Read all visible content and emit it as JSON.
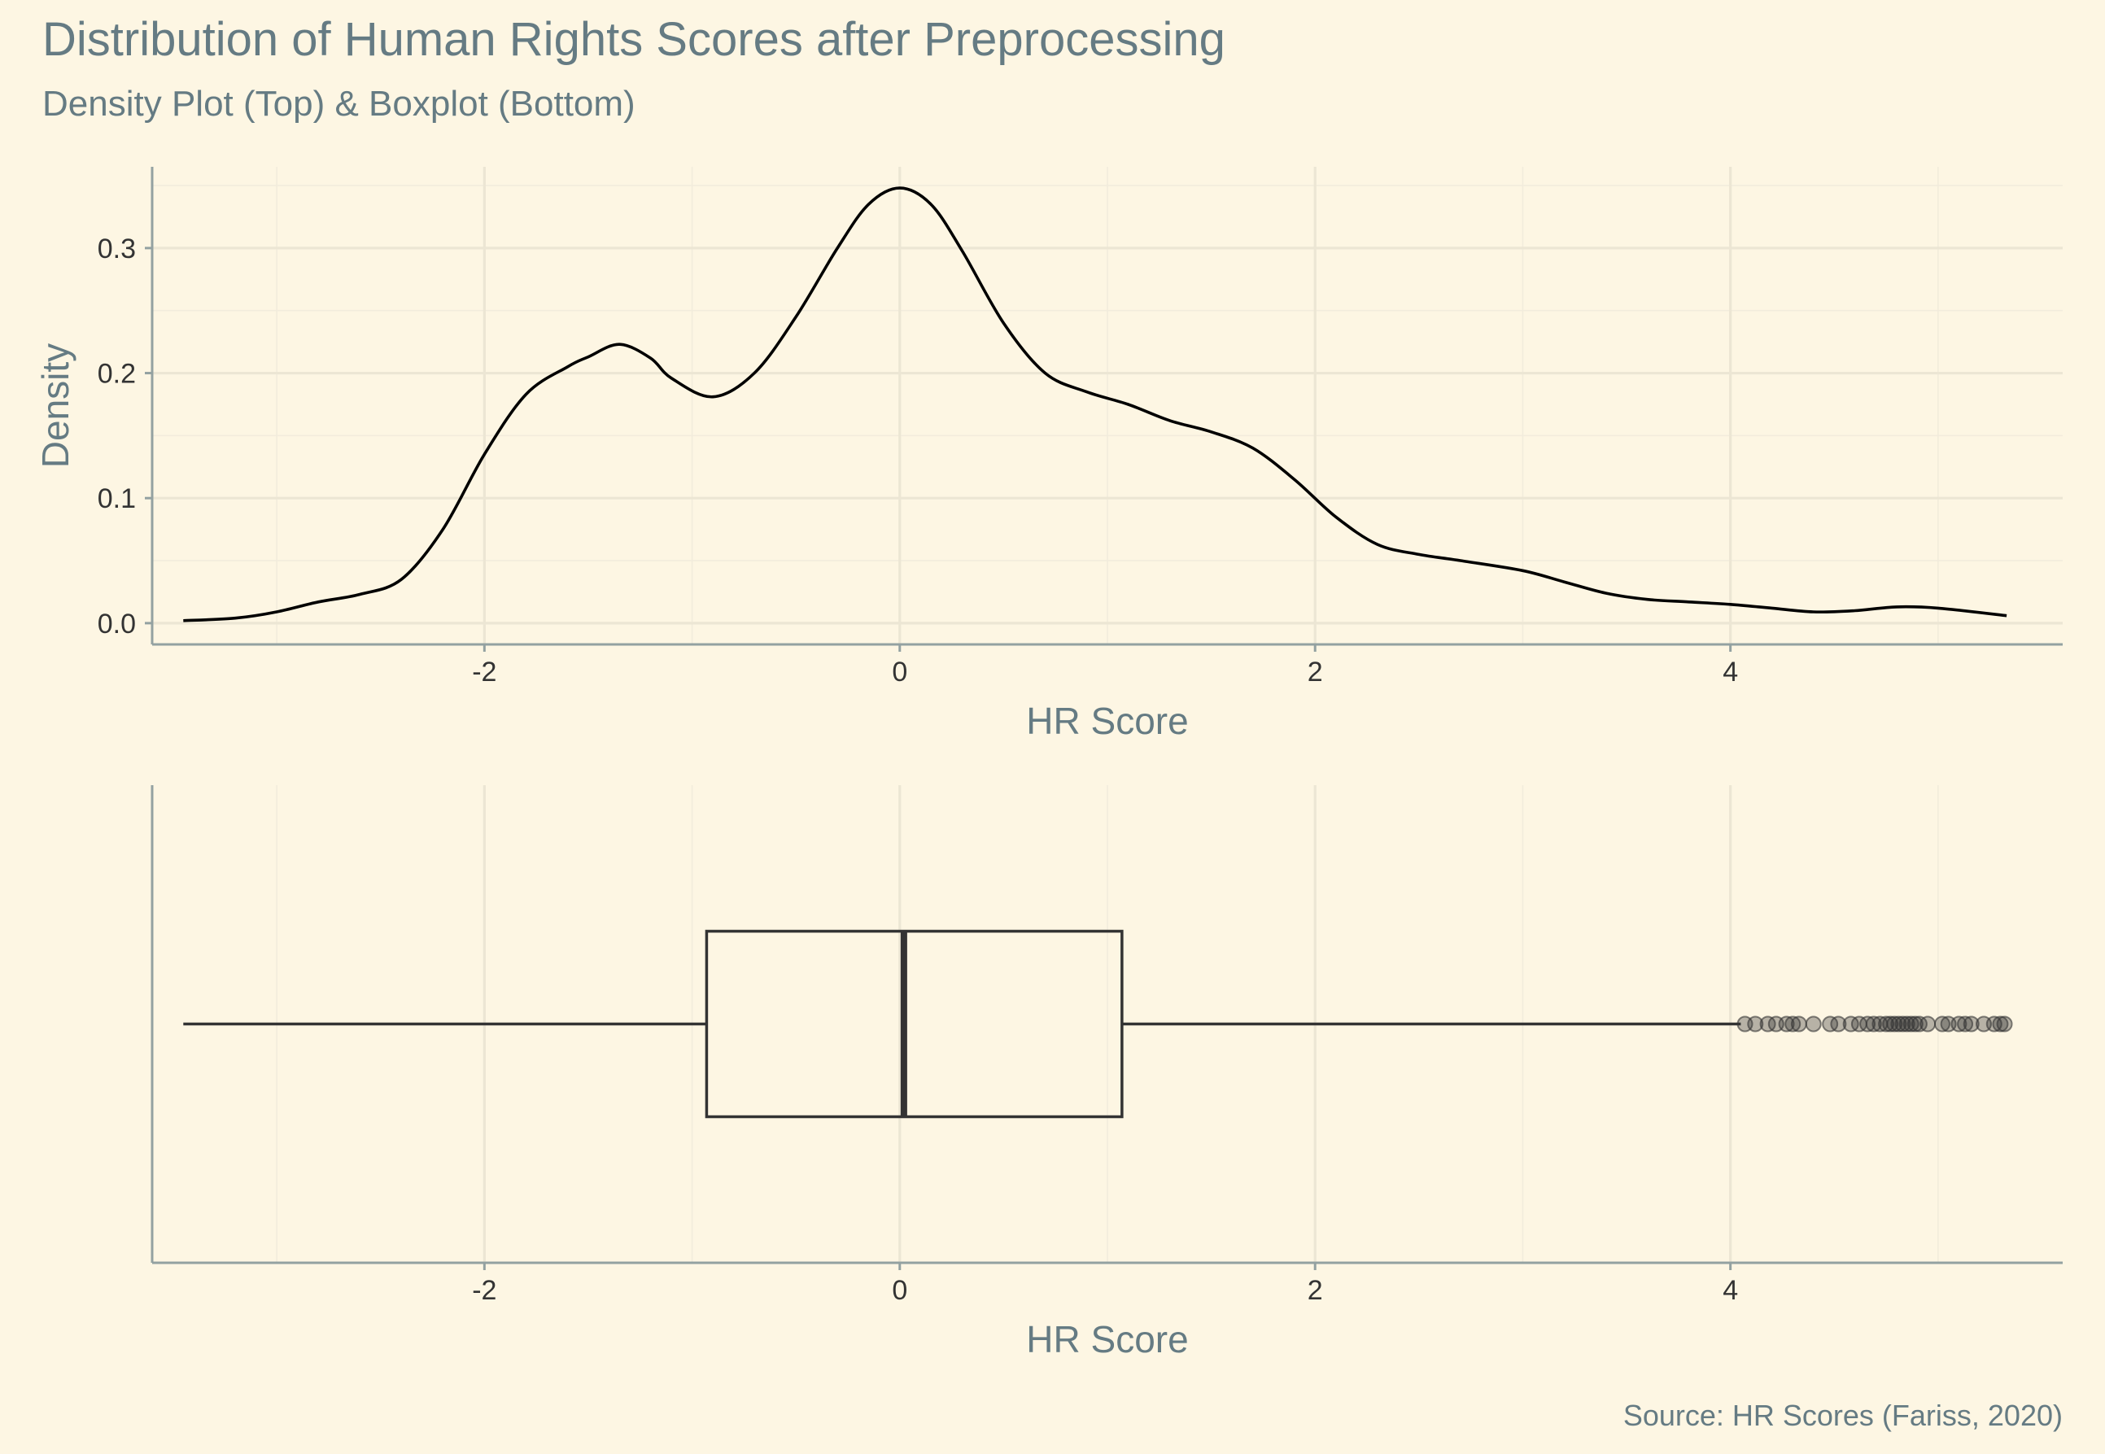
{
  "chart_data": {
    "title": "Distribution of Human Rights Scores after Preprocessing",
    "subtitle": "Density Plot (Top) & Boxplot (Bottom)",
    "caption": "Source: HR Scores (Fariss, 2020)",
    "colors": {
      "background": "#fdf6e3",
      "panel_border": "#93a1a1",
      "text": "#657b83",
      "line": "#000000",
      "box": "#333333"
    },
    "panels": [
      {
        "type": "line",
        "name": "density",
        "xlabel": "HR Score",
        "ylabel": "Density",
        "xlim": [
          -3.6,
          5.6
        ],
        "ylim": [
          -0.017,
          0.365
        ],
        "xticks": [
          -2,
          0,
          2,
          4
        ],
        "xtick_labels": [
          "-2",
          "0",
          "2",
          "4"
        ],
        "yticks": [
          0.0,
          0.1,
          0.2,
          0.3
        ],
        "ytick_labels": [
          "0.0",
          "0.1",
          "0.2",
          "0.3"
        ],
        "grid": true,
        "x": [
          -3.45,
          -3.2,
          -3.0,
          -2.8,
          -2.6,
          -2.4,
          -2.2,
          -2.0,
          -1.8,
          -1.6,
          -1.5,
          -1.35,
          -1.2,
          -1.1,
          -0.9,
          -0.7,
          -0.5,
          -0.3,
          -0.15,
          0.0,
          0.15,
          0.3,
          0.5,
          0.7,
          0.9,
          1.1,
          1.3,
          1.5,
          1.7,
          1.9,
          2.1,
          2.3,
          2.5,
          2.7,
          3.0,
          3.2,
          3.4,
          3.6,
          3.8,
          4.0,
          4.2,
          4.4,
          4.6,
          4.8,
          5.0,
          5.33
        ],
        "y": [
          0.002,
          0.004,
          0.009,
          0.017,
          0.023,
          0.035,
          0.075,
          0.135,
          0.183,
          0.205,
          0.213,
          0.223,
          0.212,
          0.196,
          0.181,
          0.2,
          0.245,
          0.3,
          0.335,
          0.348,
          0.335,
          0.298,
          0.24,
          0.2,
          0.185,
          0.175,
          0.162,
          0.153,
          0.14,
          0.115,
          0.085,
          0.063,
          0.055,
          0.05,
          0.042,
          0.033,
          0.024,
          0.019,
          0.017,
          0.015,
          0.012,
          0.009,
          0.01,
          0.013,
          0.012,
          0.006
        ]
      },
      {
        "type": "box",
        "name": "boxplot",
        "xlabel": "HR Score",
        "xlim": [
          -3.6,
          5.6
        ],
        "xticks": [
          -2,
          0,
          2,
          4
        ],
        "xtick_labels": [
          "-2",
          "0",
          "2",
          "4"
        ],
        "grid": true,
        "min": -3.45,
        "q1": -0.93,
        "median": 0.02,
        "q3": 1.07,
        "max": 4.05,
        "outliers": [
          4.07,
          4.12,
          4.18,
          4.22,
          4.27,
          4.3,
          4.33,
          4.4,
          4.48,
          4.52,
          4.58,
          4.62,
          4.66,
          4.69,
          4.72,
          4.75,
          4.77,
          4.79,
          4.81,
          4.83,
          4.85,
          4.87,
          4.89,
          4.91,
          4.95,
          5.02,
          5.05,
          5.1,
          5.13,
          5.16,
          5.22,
          5.27,
          5.3,
          5.32
        ]
      }
    ]
  }
}
